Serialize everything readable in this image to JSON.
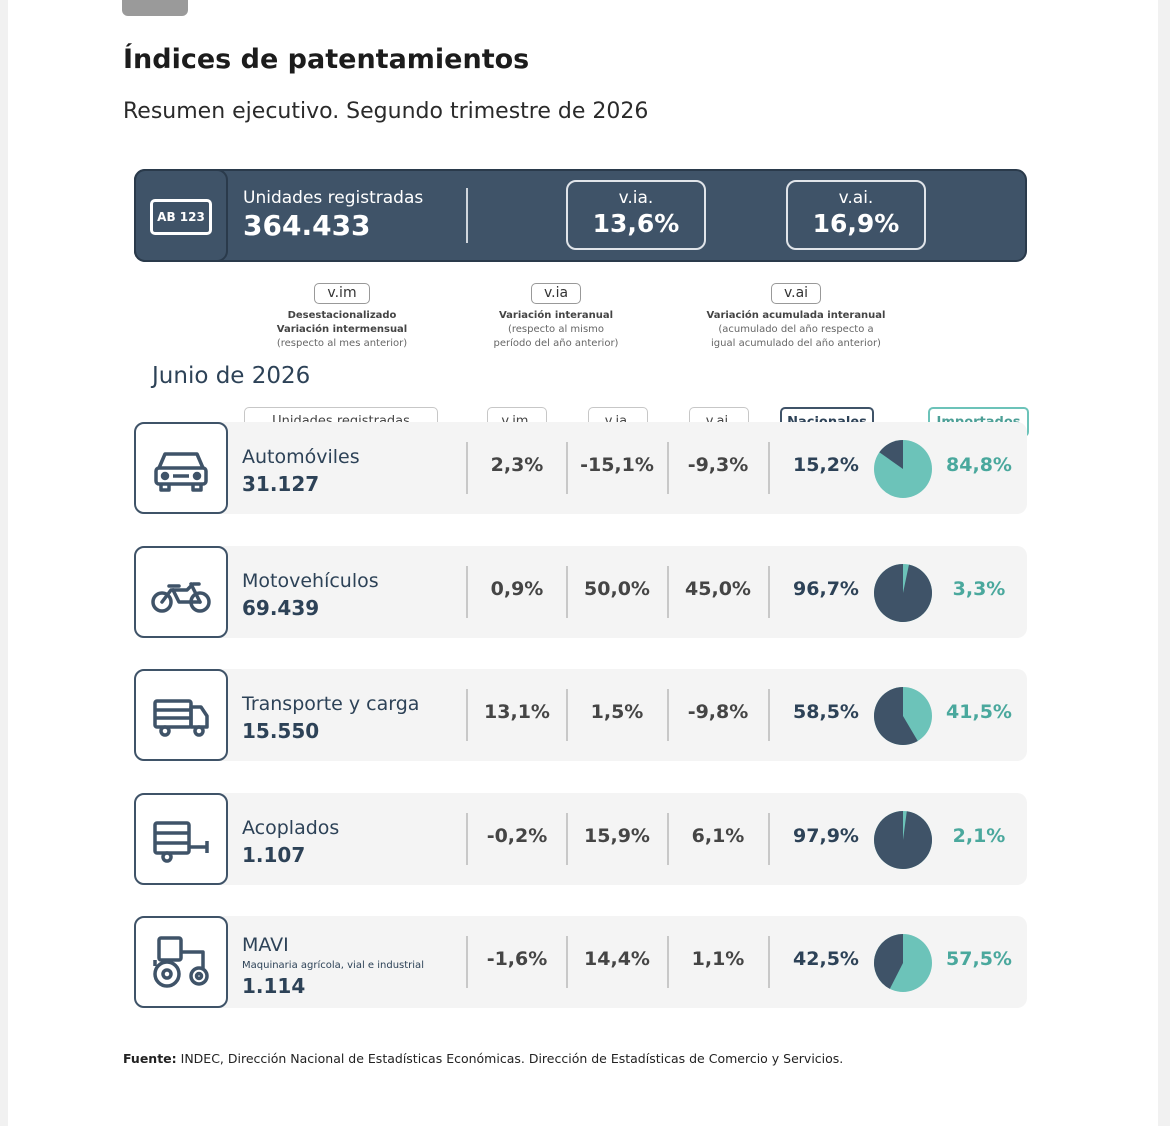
{
  "title": "Índices de patentamientos",
  "subtitle": "Resumen ejecutivo. Segundo trimestre de 2026",
  "banner": {
    "plate_text": "AB 123",
    "label": "Unidades registradas",
    "value": "364.433",
    "kpi_via_label": "v.ia.",
    "kpi_via_value": "13,6%",
    "kpi_vai_label": "v.ai.",
    "kpi_vai_value": "16,9%"
  },
  "legend": [
    {
      "tag": "v.im",
      "bold1": "Desestacionalizado",
      "bold2": "Variación intermensual",
      "small1": "(respecto al mes anterior)",
      "small2": ""
    },
    {
      "tag": "v.ia",
      "bold1": "Variación interanual",
      "bold2": "",
      "small1": "(respecto al mismo",
      "small2": "período del año anterior)"
    },
    {
      "tag": "v.ai",
      "bold1": "Variación acumulada interanual",
      "bold2": "",
      "small1": "(acumulado del año respecto a",
      "small2": "igual acumulado del año anterior)"
    }
  ],
  "month": "Junio de 2026",
  "headers": {
    "units": "Unidades registradas",
    "vim": "v.im.",
    "via": "v.ia.",
    "vai": "v.ai.",
    "nacionales": "Nacionales",
    "importados": "Importados"
  },
  "colors": {
    "navy": "#3f5368",
    "teal": "#6cc3b9"
  },
  "rows": [
    {
      "name": "Automóviles",
      "sub": "",
      "value": "31.127",
      "vim": "2,3%",
      "via": "-15,1%",
      "vai": "-9,3%",
      "nac": "15,2%",
      "imp": "84,8%",
      "nac_share": 15.2,
      "icon": "car-icon"
    },
    {
      "name": "Motovehículos",
      "sub": "",
      "value": "69.439",
      "vim": "0,9%",
      "via": "50,0%",
      "vai": "45,0%",
      "nac": "96,7%",
      "imp": "3,3%",
      "nac_share": 96.7,
      "icon": "motorcycle-icon"
    },
    {
      "name": "Transporte y carga",
      "sub": "",
      "value": "15.550",
      "vim": "13,1%",
      "via": "1,5%",
      "vai": "-9,8%",
      "nac": "58,5%",
      "imp": "41,5%",
      "nac_share": 58.5,
      "icon": "truck-icon"
    },
    {
      "name": "Acoplados",
      "sub": "",
      "value": "1.107",
      "vim": "-0,2%",
      "via": "15,9%",
      "vai": "6,1%",
      "nac": "97,9%",
      "imp": "2,1%",
      "nac_share": 97.9,
      "icon": "trailer-icon"
    },
    {
      "name": "MAVI",
      "sub": "Maquinaria agrícola, vial e industrial",
      "value": "1.114",
      "vim": "-1,6%",
      "via": "14,4%",
      "vai": "1,1%",
      "nac": "42,5%",
      "imp": "57,5%",
      "nac_share": 42.5,
      "icon": "tractor-icon"
    }
  ],
  "source_label": "Fuente:",
  "source_text": " INDEC, Dirección Nacional de Estadísticas Económicas. Dirección de Estadísticas de Comercio y Servicios."
}
